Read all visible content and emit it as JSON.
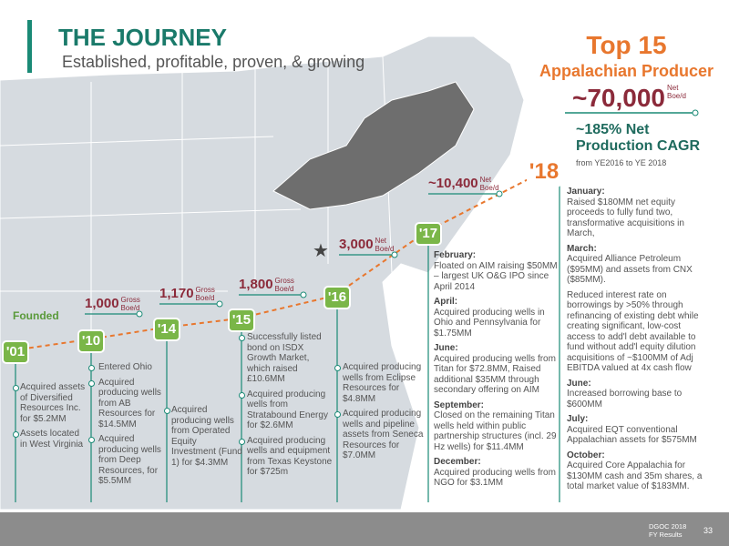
{
  "header": {
    "title": "THE JOURNEY",
    "subtitle": "Established, profitable, proven, & growing"
  },
  "highlight": {
    "rank": "Top 15",
    "rank_label": "Appalachian Producer",
    "production": "~70,000",
    "production_unit": "Net Boe/d",
    "growth": "~185% Net Production CAGR",
    "growth_period": "from YE2016 to YE 2018"
  },
  "milestones": [
    {
      "year": "'01",
      "label": "Founded",
      "items": [
        {
          "text": "Acquired assets of Diversified Resources Inc. for $5.2MM"
        },
        {
          "text": "Assets located in West Virginia"
        }
      ]
    },
    {
      "year": "'10",
      "production": "1,000",
      "unit": "Gross Boe/d",
      "items": [
        {
          "text": "Entered Ohio"
        },
        {
          "text": "Acquired producing wells from AB Resources for $14.5MM"
        },
        {
          "text": "Acquired producing wells from Deep Resources, for $5.5MM"
        }
      ]
    },
    {
      "year": "'14",
      "production": "1,170",
      "unit": "Gross Boe/d",
      "items": [
        {
          "text": "Acquired producing wells from Operated Equity Investment (Fund 1) for $4.3MM"
        }
      ]
    },
    {
      "year": "'15",
      "production": "1,800",
      "unit": "Gross Boe/d",
      "items": [
        {
          "text": "Successfully listed bond on ISDX Growth Market, which raised £10.6MM"
        },
        {
          "text": "Acquired producing wells from Stratabound Energy for $2.6MM"
        },
        {
          "text": "Acquired producing wells and equipment from Texas Keystone for $725m"
        }
      ]
    },
    {
      "year": "'16",
      "production": "3,000",
      "unit": "Net Boe/d",
      "items": [
        {
          "text": "Acquired producing wells from Eclipse Resources for $4.8MM"
        },
        {
          "text": "Acquired producing wells and pipeline assets from Seneca Resources for $7.0MM"
        }
      ]
    },
    {
      "year": "'17",
      "production": "~10,400",
      "unit": "Net Boe/d",
      "items": [
        {
          "heading": "February:",
          "text": "Floated on AIM raising $50MM – largest UK O&G IPO since April 2014"
        },
        {
          "heading": "April:",
          "text": "Acquired producing wells in Ohio and Pennsylvania for $1.75MM"
        },
        {
          "heading": "June:",
          "text": "Acquired producing wells from Titan for $72.8MM, Raised additional $35MM through secondary offering on AIM"
        },
        {
          "heading": "September:",
          "text": "Closed on the remaining Titan wells held within public partnership structures (incl. 29 Hz wells) for $11.4MM"
        },
        {
          "heading": "December:",
          "text": "Acquired producing wells from NGO for $3.1MM"
        }
      ]
    },
    {
      "year": "'18",
      "items": [
        {
          "heading": "January:",
          "text": "Raised $180MM net equity proceeds to fully fund two, transformative acquisitions in March,"
        },
        {
          "heading": "March:",
          "text": "Acquired Alliance Petroleum ($95MM) and assets from CNX ($85MM)."
        },
        {
          "text": "Reduced interest rate on borrowings by >50% through refinancing of existing debt while creating significant, low-cost access to add'l debt available to fund without add'l equity dilution acquisitions of ~$100MM of Adj EBITDA valued at 4x cash flow"
        },
        {
          "heading": "June:",
          "text": "Increased borrowing base to $600MM"
        },
        {
          "heading": "July:",
          "text": "Acquired EQT conventional Appalachian assets for $575MM"
        },
        {
          "heading": "October:",
          "text": "Acquired Core Appalachia for $130MM cash and 35m shares, a total market value of $183MM."
        }
      ]
    }
  ],
  "footer": {
    "source": "DGOC 2018 FY Results",
    "page": "33"
  }
}
